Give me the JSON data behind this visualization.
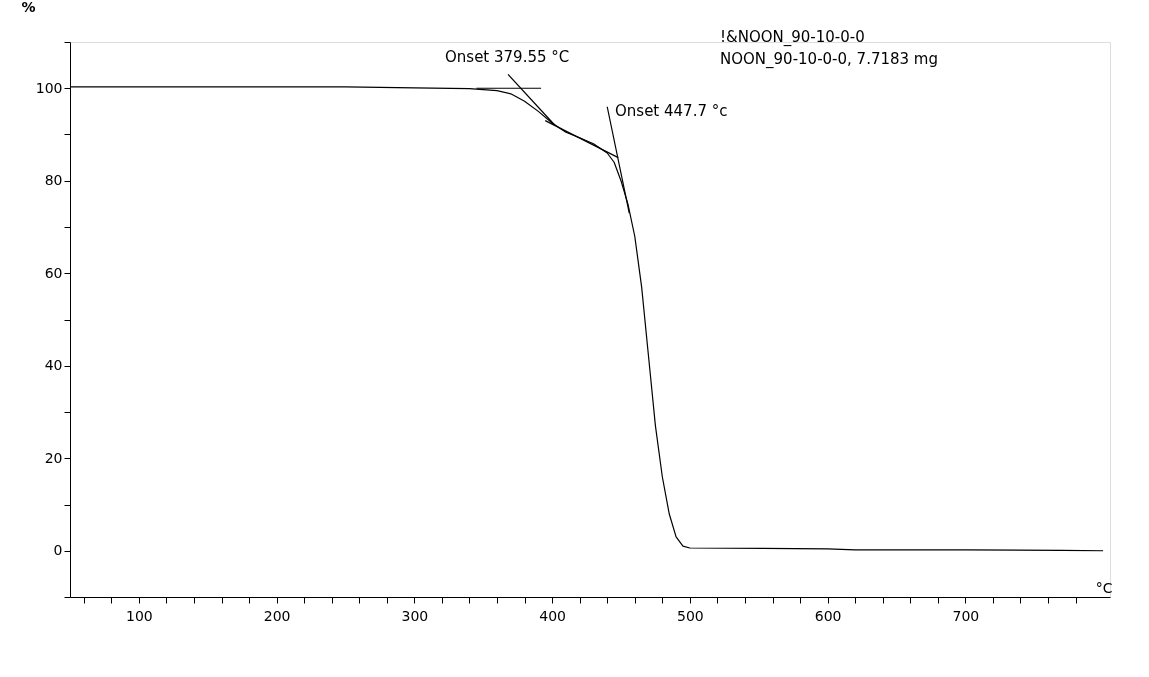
{
  "chart_data": {
    "type": "line",
    "xlabel": "°C",
    "ylabel": "%",
    "xlim": [
      50,
      805
    ],
    "ylim": [
      -10,
      110
    ],
    "xticks": [
      {
        "value": 60,
        "label": null
      },
      {
        "value": 80,
        "label": null
      },
      100,
      {
        "value": 120,
        "label": null
      },
      {
        "value": 140,
        "label": null
      },
      {
        "value": 160,
        "label": null
      },
      {
        "value": 180,
        "label": null
      },
      200,
      {
        "value": 220,
        "label": null
      },
      {
        "value": 240,
        "label": null
      },
      {
        "value": 260,
        "label": null
      },
      {
        "value": 280,
        "label": null
      },
      300,
      {
        "value": 320,
        "label": null
      },
      {
        "value": 340,
        "label": null
      },
      {
        "value": 360,
        "label": null
      },
      {
        "value": 380,
        "label": null
      },
      400,
      {
        "value": 420,
        "label": null
      },
      {
        "value": 440,
        "label": null
      },
      {
        "value": 460,
        "label": null
      },
      {
        "value": 480,
        "label": null
      },
      500,
      {
        "value": 520,
        "label": null
      },
      {
        "value": 540,
        "label": null
      },
      {
        "value": 560,
        "label": null
      },
      {
        "value": 580,
        "label": null
      },
      600,
      {
        "value": 620,
        "label": null
      },
      {
        "value": 640,
        "label": null
      },
      {
        "value": 660,
        "label": null
      },
      {
        "value": 680,
        "label": null
      },
      700,
      {
        "value": 720,
        "label": null
      },
      {
        "value": 740,
        "label": null
      },
      {
        "value": 760,
        "label": null
      },
      {
        "value": 780,
        "label": null
      }
    ],
    "yticks": [
      {
        "value": -10,
        "label": null
      },
      0,
      {
        "value": 10,
        "label": null
      },
      20,
      {
        "value": 30,
        "label": null
      },
      40,
      {
        "value": 50,
        "label": null
      },
      60,
      {
        "value": 70,
        "label": null
      },
      80,
      {
        "value": 90,
        "label": null
      },
      100,
      {
        "value": 110,
        "label": null
      }
    ],
    "grid": false,
    "marker": "none",
    "line_style": "solid",
    "series": [
      {
        "color": "#000000",
        "x": [
          50,
          250,
          300,
          340,
          360,
          370,
          380,
          390,
          400,
          410,
          420,
          430,
          440,
          445,
          450,
          455,
          460,
          465,
          470,
          475,
          480,
          485,
          490,
          495,
          500,
          600,
          620,
          700,
          770,
          800
        ],
        "values": [
          100.3,
          100.3,
          100.1,
          99.9,
          99.5,
          98.8,
          97.2,
          95,
          92.5,
          90.5,
          89.3,
          88,
          86,
          84,
          80,
          75,
          68,
          57,
          42,
          27,
          16,
          8,
          3,
          1,
          0.6,
          0.4,
          0.2,
          0.2,
          0.1,
          0
        ]
      },
      {
        "color": "#000000",
        "x": [
          345,
          392
        ],
        "values": [
          100,
          100
        ]
      },
      {
        "color": "#000000",
        "x": [
          368,
          402
        ],
        "values": [
          103,
          92
        ]
      },
      {
        "color": "#000000",
        "x": [
          395,
          448
        ],
        "values": [
          93,
          85
        ]
      },
      {
        "color": "#000000",
        "x": [
          440,
          456
        ],
        "values": [
          96,
          73
        ]
      }
    ],
    "annotations": [
      "Onset  379.55 °C",
      "Onset 447.7 °c",
      "!&NOON_90-10-0-0",
      "NOON_90-10-0-0, 7.7183 mg"
    ]
  }
}
